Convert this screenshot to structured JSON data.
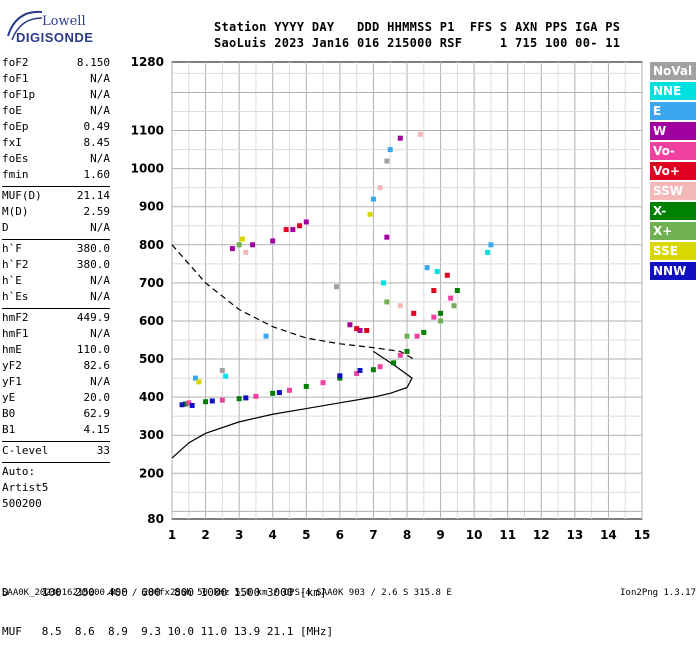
{
  "logo": {
    "line1": "Lowell",
    "line2": "DIGISONDE"
  },
  "header": {
    "row1": "Station YYYY DAY   DDD HHMMSS P1  FFS S AXN PPS IGA PS",
    "row2": "SaoLuis 2023 Jan16 016 215000 RSF     1 715 100 00- 11"
  },
  "params": {
    "group1": [
      {
        "label": "foF2",
        "value": "8.150"
      },
      {
        "label": "foF1",
        "value": "N/A"
      },
      {
        "label": "foF1p",
        "value": "N/A"
      },
      {
        "label": "foE",
        "value": "N/A"
      },
      {
        "label": "foEp",
        "value": "0.49"
      },
      {
        "label": "fxI",
        "value": "8.45"
      },
      {
        "label": "foEs",
        "value": "N/A"
      },
      {
        "label": "fmin",
        "value": "1.60"
      }
    ],
    "group2": [
      {
        "label": "MUF(D)",
        "value": "21.14"
      },
      {
        "label": "M(D)",
        "value": "2.59"
      },
      {
        "label": "D",
        "value": "N/A"
      }
    ],
    "group3": [
      {
        "label": "h`F",
        "value": "380.0"
      },
      {
        "label": "h`F2",
        "value": "380.0"
      },
      {
        "label": "h`E",
        "value": "N/A"
      },
      {
        "label": "h`Es",
        "value": "N/A"
      }
    ],
    "group4": [
      {
        "label": "hmF2",
        "value": "449.9"
      },
      {
        "label": "hmF1",
        "value": "N/A"
      },
      {
        "label": "hmE",
        "value": "110.0"
      },
      {
        "label": "yF2",
        "value": "82.6"
      },
      {
        "label": "yF1",
        "value": "N/A"
      },
      {
        "label": "yE",
        "value": "20.0"
      },
      {
        "label": "B0",
        "value": "62.9"
      },
      {
        "label": "B1",
        "value": "4.15"
      }
    ],
    "group5": [
      {
        "label": "C-level",
        "value": "33"
      }
    ],
    "notes": [
      "Auto:",
      "Artist5",
      "500200"
    ]
  },
  "legend": [
    {
      "name": "NoVal",
      "color": "#a0a0a0"
    },
    {
      "name": "NNE",
      "color": "#00e0e0"
    },
    {
      "name": "E",
      "color": "#3aa8f0"
    },
    {
      "name": "W",
      "color": "#a000a0"
    },
    {
      "name": "Vo-",
      "color": "#f040a0"
    },
    {
      "name": "Vo+",
      "color": "#e00020"
    },
    {
      "name": "SSW",
      "color": "#f4b8b8"
    },
    {
      "name": "X-",
      "color": "#008000"
    },
    {
      "name": "X+",
      "color": "#70b050"
    },
    {
      "name": "SSE",
      "color": "#d8d800"
    },
    {
      "name": "NNW",
      "color": "#1010c0"
    }
  ],
  "bottom": {
    "row1": "D     100  200  400  600  800 1000 1500 3000 [km]",
    "row2": "MUF   8.5  8.6  8.9  9.3 10.0 11.0 13.9 21.1 [MHz]"
  },
  "footer": "SAA0K_2023016215000.RSF / 280fx256h 50 kHz 5.0 km / DPS-4 SAA0K 903 / 2.6 S 315.8 E",
  "version": "Ion2Png 1.3.17",
  "chart_data": {
    "type": "scatter",
    "xlim": [
      1,
      15
    ],
    "ylim": [
      80,
      1280
    ],
    "x_ticks": [
      1,
      2,
      3,
      4,
      5,
      6,
      7,
      8,
      9,
      10,
      11,
      12,
      13,
      14,
      15
    ],
    "y_ticks": [
      80,
      200,
      300,
      400,
      500,
      600,
      700,
      800,
      900,
      1000,
      1100,
      1280
    ],
    "grid": true,
    "legend_position": "right",
    "series": [
      {
        "name": "X-",
        "color": "#008000",
        "values": [
          [
            1.4,
            382
          ],
          [
            2.0,
            388
          ],
          [
            3.0,
            396
          ],
          [
            4.0,
            410
          ],
          [
            5.0,
            428
          ],
          [
            6.0,
            450
          ],
          [
            7.0,
            472
          ],
          [
            7.6,
            490
          ],
          [
            8.0,
            520
          ],
          [
            8.5,
            570
          ],
          [
            9.0,
            620
          ],
          [
            9.5,
            680
          ]
        ]
      },
      {
        "name": "Vo-",
        "color": "#f040a0",
        "values": [
          [
            1.5,
            385
          ],
          [
            2.5,
            392
          ],
          [
            3.5,
            402
          ],
          [
            4.5,
            418
          ],
          [
            5.5,
            438
          ],
          [
            6.5,
            462
          ],
          [
            7.2,
            480
          ],
          [
            7.8,
            510
          ],
          [
            8.3,
            560
          ],
          [
            8.8,
            610
          ],
          [
            9.3,
            660
          ]
        ]
      },
      {
        "name": "NNW",
        "color": "#1010c0",
        "values": [
          [
            1.3,
            380
          ],
          [
            1.6,
            378
          ],
          [
            2.2,
            390
          ],
          [
            3.2,
            398
          ],
          [
            4.2,
            412
          ],
          [
            6.0,
            456
          ],
          [
            6.6,
            470
          ]
        ]
      },
      {
        "name": "W",
        "color": "#a000a0",
        "values": [
          [
            2.8,
            790
          ],
          [
            3.4,
            800
          ],
          [
            4.0,
            810
          ],
          [
            4.6,
            840
          ],
          [
            5.0,
            860
          ],
          [
            6.3,
            590
          ],
          [
            6.6,
            575
          ],
          [
            7.4,
            820
          ],
          [
            7.8,
            1080
          ]
        ]
      },
      {
        "name": "Vo+",
        "color": "#e00020",
        "values": [
          [
            4.4,
            840
          ],
          [
            4.8,
            850
          ],
          [
            6.5,
            580
          ],
          [
            6.8,
            575
          ],
          [
            8.2,
            620
          ],
          [
            8.8,
            680
          ],
          [
            9.2,
            720
          ]
        ]
      },
      {
        "name": "E",
        "color": "#3aa8f0",
        "values": [
          [
            1.7,
            450
          ],
          [
            3.8,
            560
          ],
          [
            7.0,
            920
          ],
          [
            7.5,
            1050
          ],
          [
            8.6,
            740
          ],
          [
            10.5,
            800
          ]
        ]
      },
      {
        "name": "NNE",
        "color": "#00e0e0",
        "values": [
          [
            2.6,
            455
          ],
          [
            7.3,
            700
          ],
          [
            8.9,
            730
          ],
          [
            10.4,
            780
          ]
        ]
      },
      {
        "name": "X+",
        "color": "#70b050",
        "values": [
          [
            3.0,
            800
          ],
          [
            7.4,
            650
          ],
          [
            8.0,
            560
          ],
          [
            9.0,
            600
          ],
          [
            9.4,
            640
          ]
        ]
      },
      {
        "name": "SSW",
        "color": "#f4b8b8",
        "values": [
          [
            3.2,
            780
          ],
          [
            7.2,
            950
          ],
          [
            8.4,
            1090
          ],
          [
            7.8,
            640
          ]
        ]
      },
      {
        "name": "SSE",
        "color": "#d8d800",
        "values": [
          [
            1.8,
            440
          ],
          [
            3.1,
            815
          ],
          [
            6.9,
            880
          ]
        ]
      },
      {
        "name": "NoVal",
        "color": "#a0a0a0",
        "values": [
          [
            7.4,
            1020
          ],
          [
            5.9,
            690
          ],
          [
            2.5,
            470
          ]
        ]
      }
    ],
    "profile_curve": [
      [
        1,
        240
      ],
      [
        1.5,
        280
      ],
      [
        2,
        305
      ],
      [
        3,
        335
      ],
      [
        4,
        355
      ],
      [
        5,
        370
      ],
      [
        6,
        385
      ],
      [
        7,
        400
      ],
      [
        7.5,
        410
      ],
      [
        8,
        425
      ],
      [
        8.15,
        450
      ],
      [
        7.6,
        485
      ],
      [
        7.0,
        520
      ]
    ],
    "muf_curve": [
      [
        1,
        800
      ],
      [
        2,
        700
      ],
      [
        3,
        630
      ],
      [
        4,
        585
      ],
      [
        5,
        555
      ],
      [
        6,
        540
      ],
      [
        7,
        530
      ],
      [
        7.8,
        520
      ],
      [
        8.2,
        500
      ]
    ]
  }
}
